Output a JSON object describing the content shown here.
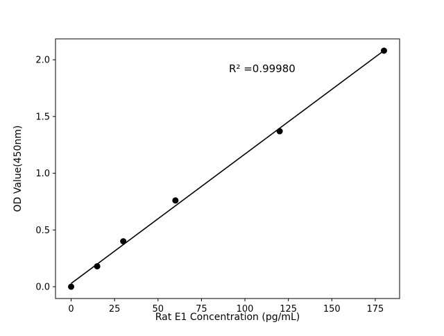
{
  "chart_data": {
    "type": "scatter",
    "x": [
      0,
      15,
      30,
      60,
      120,
      180
    ],
    "y": [
      0.0,
      0.18,
      0.4,
      0.76,
      1.37,
      2.08
    ],
    "xlabel": "Rat E1 Concentration (pg/mL)",
    "ylabel": "OD Value(450nm)",
    "annotation": "R² =0.99980",
    "x_ticks": [
      0,
      25,
      50,
      75,
      100,
      125,
      150,
      175
    ],
    "y_ticks": [
      0.0,
      0.5,
      1.0,
      1.5,
      2.0
    ],
    "xlim": [
      -9,
      189
    ],
    "ylim": [
      -0.104,
      2.184
    ],
    "grid": false,
    "fit_line": true,
    "legend": "none",
    "colors": {
      "marker": "#000000",
      "line": "#000000",
      "background": "#ffffff"
    }
  }
}
